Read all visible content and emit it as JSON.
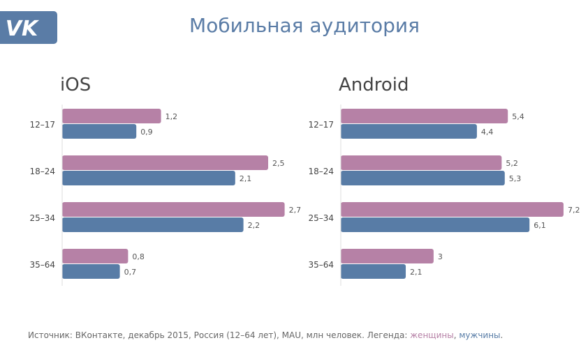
{
  "title": "Мобильная аудитория",
  "logo": "VK",
  "colors": {
    "women": "#b681a6",
    "men": "#587ca6"
  },
  "footer": {
    "text": "Источник: ВКонтакте, декабрь 2015, Россия (12–64 лет), MAU, млн человек. Легенда: ",
    "women": "женщины",
    "sep": ", ",
    "men": "мужчины",
    "end": "."
  },
  "chart_data": [
    {
      "type": "bar",
      "title": "iOS",
      "categories": [
        "12–17",
        "18–24",
        "25–34",
        "35–64"
      ],
      "series": [
        {
          "name": "женщины",
          "values": [
            1.2,
            2.5,
            2.7,
            0.8
          ],
          "labels": [
            "1,2",
            "2,5",
            "2,7",
            "0,8"
          ]
        },
        {
          "name": "мужчины",
          "values": [
            0.9,
            2.1,
            2.2,
            0.7
          ],
          "labels": [
            "0,9",
            "2,1",
            "2,2",
            "0,7"
          ]
        }
      ]
    },
    {
      "type": "bar",
      "title": "Android",
      "categories": [
        "12–17",
        "18–24",
        "25–34",
        "35–64"
      ],
      "series": [
        {
          "name": "женщины",
          "values": [
            5.4,
            5.2,
            7.2,
            3
          ],
          "labels": [
            "5,4",
            "5,2",
            "7,2",
            "3"
          ]
        },
        {
          "name": "мужчины",
          "values": [
            4.4,
            5.3,
            6.1,
            2.1
          ],
          "labels": [
            "4,4",
            "5,3",
            "6,1",
            "2,1"
          ]
        }
      ]
    }
  ]
}
